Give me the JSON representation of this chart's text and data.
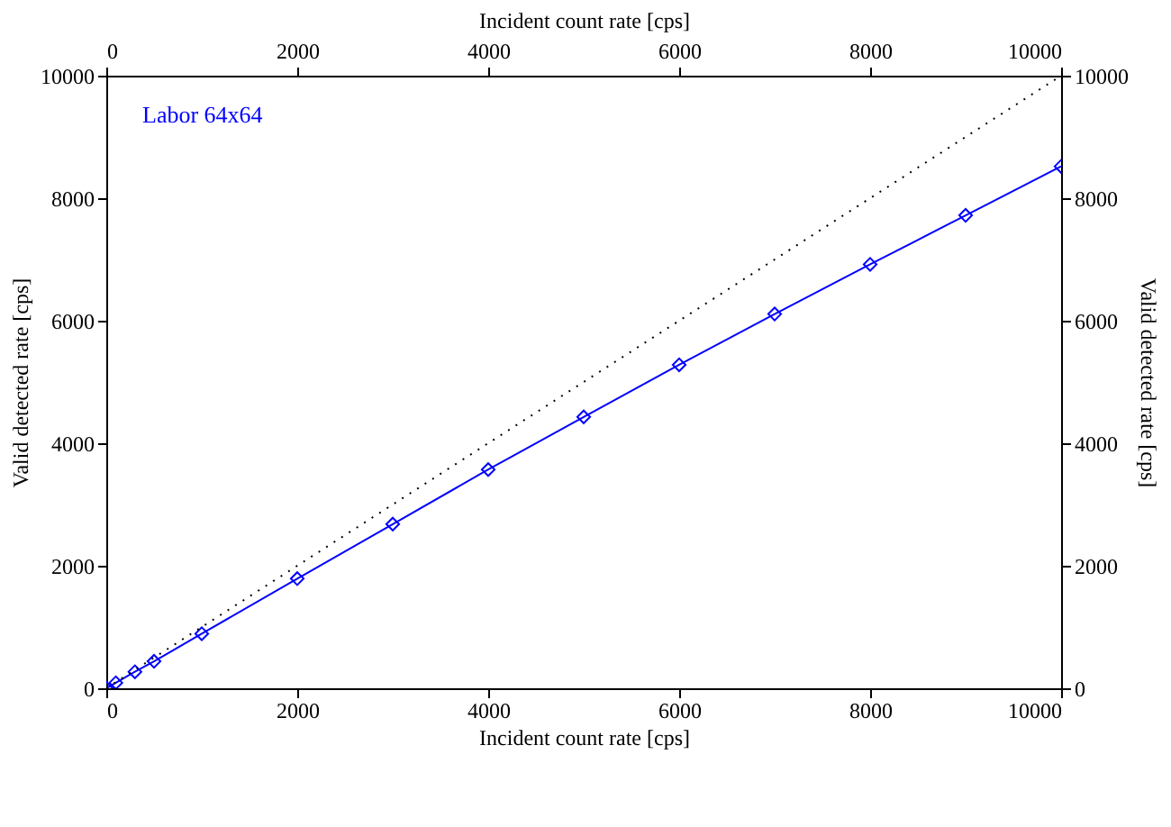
{
  "chart_data": {
    "type": "line",
    "xlabel": "Incident count rate [cps]",
    "x2label": "Incident count rate [cps]",
    "ylabel": "Valid detected rate [cps]",
    "y2label": "Valid detected rate [cps]",
    "xlim": [
      0,
      10000
    ],
    "xticks": [
      0,
      2000,
      4000,
      6000,
      8000,
      10000
    ],
    "x2lim": [
      0,
      10000
    ],
    "x2ticks": [
      0,
      2000,
      4000,
      6000,
      8000,
      10000
    ],
    "ylim": [
      0,
      10000
    ],
    "yticks": [
      0,
      2000,
      4000,
      6000,
      8000,
      10000
    ],
    "y2lim": [
      0,
      10000
    ],
    "y2ticks": [
      0,
      2000,
      4000,
      6000,
      8000,
      10000
    ],
    "grid": false,
    "legend": "top left",
    "series": [
      {
        "name": "Labor 64x64",
        "color": "#0000ff",
        "marker": "diamond",
        "line_style": "solid",
        "x": [
          0,
          100,
          300,
          500,
          1000,
          2000,
          3000,
          4000,
          5000,
          6000,
          7000,
          8000,
          9000,
          10000
        ],
        "values": [
          0,
          90,
          270,
          440,
          890,
          1790,
          2680,
          3570,
          4430,
          5280,
          6110,
          6920,
          7720,
          8520
        ]
      },
      {
        "type": "line",
        "color": "#000000",
        "marker": "none",
        "line_style": "dotted",
        "x": [
          0,
          10000
        ],
        "values": [
          0,
          10000
        ]
      }
    ]
  }
}
